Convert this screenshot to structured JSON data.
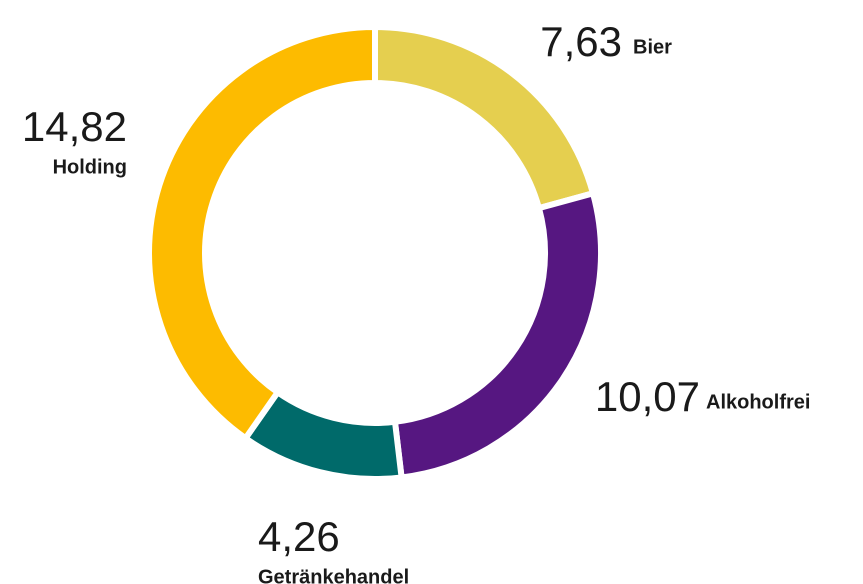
{
  "chart_data": {
    "type": "donut",
    "categories": [
      "Bier",
      "Alkoholfrei",
      "Getränkehandel",
      "Holding"
    ],
    "values": [
      7.63,
      10.07,
      4.26,
      14.82
    ],
    "value_labels": [
      "7,63",
      "10,07",
      "4,26",
      "14,82"
    ],
    "colors": [
      "#e5cf4f",
      "#561781",
      "#006a6a",
      "#fdbb00"
    ]
  }
}
